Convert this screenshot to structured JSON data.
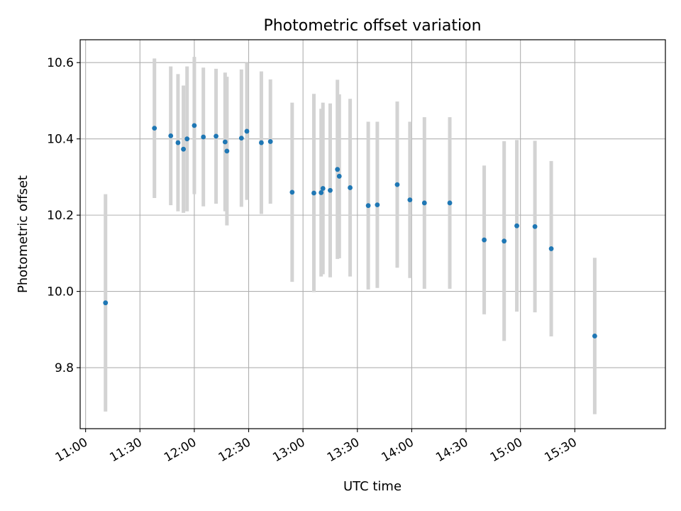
{
  "chart_data": {
    "type": "scatter",
    "title": "Photometric offset variation",
    "xlabel": "UTC time",
    "ylabel": "Photometric offset",
    "x_type": "time",
    "xlim": [
      "10:57",
      "16:20"
    ],
    "ylim": [
      9.64,
      10.66
    ],
    "x_ticks": [
      "11:00",
      "11:30",
      "12:00",
      "12:30",
      "13:00",
      "13:30",
      "14:00",
      "14:30",
      "15:00",
      "15:30"
    ],
    "y_ticks": [
      9.8,
      10.0,
      10.2,
      10.4,
      10.6
    ],
    "y_tick_labels": [
      "9.8",
      "10.0",
      "10.2",
      "10.4",
      "10.6"
    ],
    "grid": true,
    "legend": "none",
    "series": [
      {
        "marker_color": "#1f77b4",
        "errorbar_color": "#d3d3d3",
        "points": [
          {
            "x": "11:11",
            "y": 9.97,
            "yerr": 0.285
          },
          {
            "x": "11:38",
            "y": 10.428,
            "yerr": 0.183
          },
          {
            "x": "11:47",
            "y": 10.408,
            "yerr": 0.182
          },
          {
            "x": "11:51",
            "y": 10.39,
            "yerr": 0.18
          },
          {
            "x": "11:54",
            "y": 10.373,
            "yerr": 0.167
          },
          {
            "x": "11:56",
            "y": 10.4,
            "yerr": 0.19
          },
          {
            "x": "12:00",
            "y": 10.435,
            "yerr": 0.18
          },
          {
            "x": "12:05",
            "y": 10.405,
            "yerr": 0.182
          },
          {
            "x": "12:12",
            "y": 10.407,
            "yerr": 0.177
          },
          {
            "x": "12:17",
            "y": 10.392,
            "yerr": 0.182
          },
          {
            "x": "12:18",
            "y": 10.368,
            "yerr": 0.195
          },
          {
            "x": "12:26",
            "y": 10.402,
            "yerr": 0.18
          },
          {
            "x": "12:29",
            "y": 10.42,
            "yerr": 0.18
          },
          {
            "x": "12:37",
            "y": 10.39,
            "yerr": 0.187
          },
          {
            "x": "12:42",
            "y": 10.393,
            "yerr": 0.163
          },
          {
            "x": "12:54",
            "y": 10.26,
            "yerr": 0.235
          },
          {
            "x": "13:06",
            "y": 10.258,
            "yerr": 0.26
          },
          {
            "x": "13:10",
            "y": 10.259,
            "yerr": 0.22
          },
          {
            "x": "13:11",
            "y": 10.27,
            "yerr": 0.225
          },
          {
            "x": "13:15",
            "y": 10.265,
            "yerr": 0.228
          },
          {
            "x": "13:19",
            "y": 10.32,
            "yerr": 0.235
          },
          {
            "x": "13:20",
            "y": 10.302,
            "yerr": 0.215
          },
          {
            "x": "13:26",
            "y": 10.272,
            "yerr": 0.233
          },
          {
            "x": "13:36",
            "y": 10.225,
            "yerr": 0.22
          },
          {
            "x": "13:41",
            "y": 10.227,
            "yerr": 0.218
          },
          {
            "x": "13:52",
            "y": 10.28,
            "yerr": 0.218
          },
          {
            "x": "13:59",
            "y": 10.24,
            "yerr": 0.205
          },
          {
            "x": "14:07",
            "y": 10.232,
            "yerr": 0.225
          },
          {
            "x": "14:21",
            "y": 10.232,
            "yerr": 0.225
          },
          {
            "x": "14:40",
            "y": 10.135,
            "yerr": 0.195
          },
          {
            "x": "14:51",
            "y": 10.132,
            "yerr": 0.262
          },
          {
            "x": "14:58",
            "y": 10.172,
            "yerr": 0.225
          },
          {
            "x": "15:08",
            "y": 10.17,
            "yerr": 0.225
          },
          {
            "x": "15:17",
            "y": 10.112,
            "yerr": 0.23
          },
          {
            "x": "15:41",
            "y": 9.883,
            "yerr": 0.205
          }
        ]
      }
    ]
  }
}
